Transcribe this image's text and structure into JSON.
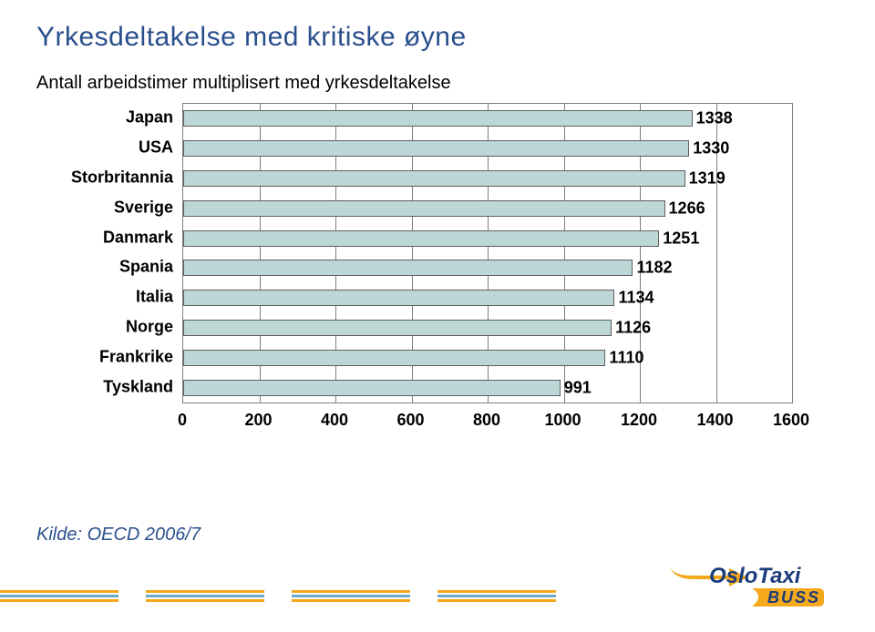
{
  "title": "Yrkesdeltakelse med kritiske øyne",
  "subtitle": "Antall arbeidstimer multiplisert med yrkesdeltakelse",
  "source": "Kilde: OECD 2006/7",
  "chart": {
    "type": "bar",
    "orientation": "horizontal",
    "xlim": [
      0,
      1600
    ],
    "xticks": [
      0,
      200,
      400,
      600,
      800,
      1000,
      1200,
      1400,
      1600
    ],
    "bar_color": "#bdd6d6",
    "bar_border_color": "#5f5f5f",
    "grid_color": "#7f7f7f",
    "background_color": "#ffffff",
    "label_fontsize": 18,
    "label_fontweight": "bold",
    "categories": [
      "Japan",
      "USA",
      "Storbritannia",
      "Sverige",
      "Danmark",
      "Spania",
      "Italia",
      "Norge",
      "Frankrike",
      "Tyskland"
    ],
    "values": [
      1338,
      1330,
      1319,
      1266,
      1251,
      1182,
      1134,
      1126,
      1110,
      991
    ]
  },
  "logo": {
    "line1": "OsloTaxi",
    "line2": "BUSS",
    "text_color": "#1b3d7a",
    "buss_bg": "#f4a81c",
    "swoosh_color": "#f4a81c"
  },
  "footer": {
    "stripe_colors": [
      "#f4a81c",
      "#6fa8c7",
      "#f4a81c"
    ]
  }
}
